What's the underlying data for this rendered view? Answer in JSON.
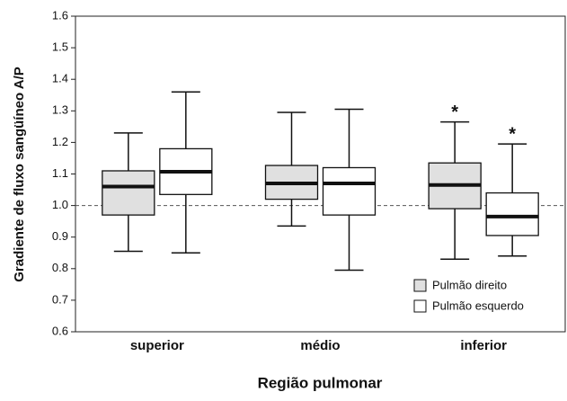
{
  "chart_data": {
    "type": "box",
    "xlabel": "Região pulmonar",
    "ylabel": "Gradiente de fluxo sangüíneo A/P",
    "categories": [
      "superior",
      "médio",
      "inferior"
    ],
    "ylim": [
      0.6,
      1.6
    ],
    "yticks": [
      0.6,
      0.7,
      0.8,
      0.9,
      {
        "value": 1.0,
        "label": "1.0"
      },
      1.1,
      1.2,
      1.3,
      1.4,
      1.5,
      1.6
    ],
    "hline": 1.0,
    "legend": "lower right",
    "series": [
      {
        "name": "Pulmão direito",
        "color": "#e0e0e0",
        "whislo": [
          0.855,
          0.935,
          0.83
        ],
        "q1": [
          0.97,
          1.02,
          0.99
        ],
        "med": [
          1.06,
          1.07,
          1.065
        ],
        "q3": [
          1.11,
          1.127,
          1.135
        ],
        "whishi": [
          1.23,
          1.295,
          1.265
        ],
        "significance": [
          null,
          null,
          "*"
        ]
      },
      {
        "name": "Pulmão esquerdo",
        "color": "#ffffff",
        "whislo": [
          0.85,
          0.795,
          0.84
        ],
        "q1": [
          1.035,
          0.97,
          0.905
        ],
        "med": [
          1.107,
          1.07,
          0.965
        ],
        "q3": [
          1.18,
          1.12,
          1.04
        ],
        "whishi": [
          1.36,
          1.305,
          1.195
        ],
        "significance": [
          null,
          null,
          "*"
        ]
      }
    ]
  }
}
